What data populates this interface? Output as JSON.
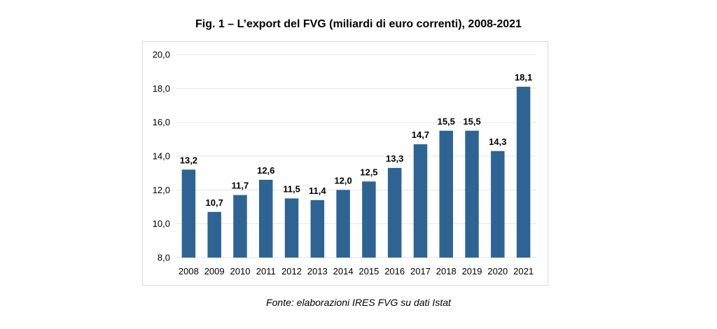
{
  "chart_data": {
    "type": "bar",
    "title": "Fig. 1 – L’export del FVG (miliardi di euro correnti), 2008-2021",
    "categories": [
      "2008",
      "2009",
      "2010",
      "2011",
      "2012",
      "2013",
      "2014",
      "2015",
      "2016",
      "2017",
      "2018",
      "2019",
      "2020",
      "2021"
    ],
    "values": [
      13.2,
      10.7,
      11.7,
      12.6,
      11.5,
      11.4,
      12.0,
      12.5,
      13.3,
      14.7,
      15.5,
      15.5,
      14.3,
      18.1
    ],
    "data_labels": [
      "13,2",
      "10,7",
      "11,7",
      "12,6",
      "11,5",
      "11,4",
      "12,0",
      "12,5",
      "13,3",
      "14,7",
      "15,5",
      "15,5",
      "14,3",
      "18,1"
    ],
    "ylim": [
      8,
      20
    ],
    "yticks": [
      8,
      10,
      12,
      14,
      16,
      18,
      20
    ],
    "ytick_labels": [
      "8,0",
      "10,0",
      "12,0",
      "14,0",
      "16,0",
      "18,0",
      "20,0"
    ],
    "xlabel": "",
    "ylabel": "",
    "grid": true,
    "bar_color": "#2e6494",
    "grid_color": "#e6e6e6"
  },
  "source_note": "Fonte: elaborazioni IRES FVG su dati Istat"
}
